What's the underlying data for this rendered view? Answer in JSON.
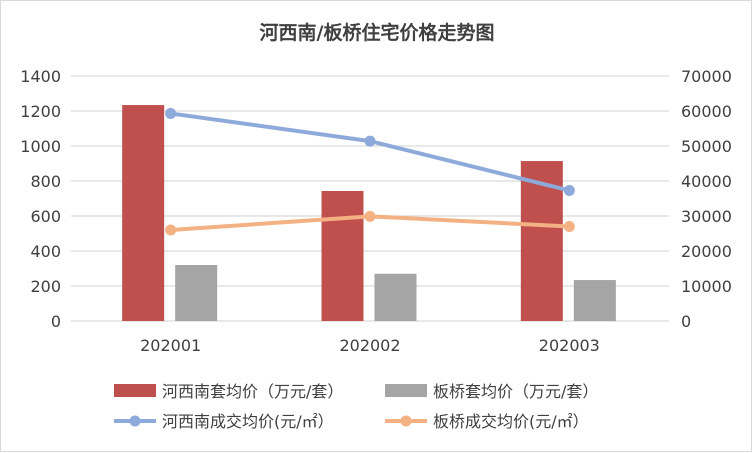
{
  "chart_data": {
    "type": "bar",
    "title": "河西南/板桥住宅价格走势图",
    "categories": [
      "202001",
      "202002",
      "202003"
    ],
    "y_left": {
      "range": [
        0,
        1400
      ],
      "ticks": [
        "0",
        "200",
        "400",
        "600",
        "800",
        "1000",
        "1200",
        "1400"
      ]
    },
    "y_right": {
      "range": [
        0,
        70000
      ],
      "ticks": [
        "0",
        "10000",
        "20000",
        "30000",
        "40000",
        "50000",
        "60000",
        "70000"
      ]
    },
    "grid": true,
    "legend_position": "bottom",
    "series": [
      {
        "name": "河西南套均价（万元/套）",
        "kind": "bar",
        "axis": "left",
        "color": "#c0504d",
        "values": [
          1234,
          743,
          914
        ]
      },
      {
        "name": "板桥套均价（万元/套）",
        "kind": "bar",
        "axis": "left",
        "color": "#a5a5a5",
        "values": [
          320,
          270,
          234
        ]
      },
      {
        "name": "河西南成交均价(元/㎡）",
        "kind": "line",
        "axis": "right",
        "color": "#8eaadb",
        "values": [
          59300,
          51400,
          37300
        ]
      },
      {
        "name": "板桥成交均价(元/㎡）",
        "kind": "line",
        "axis": "right",
        "color": "#f4b183",
        "values": [
          26000,
          29900,
          27000
        ]
      }
    ]
  }
}
